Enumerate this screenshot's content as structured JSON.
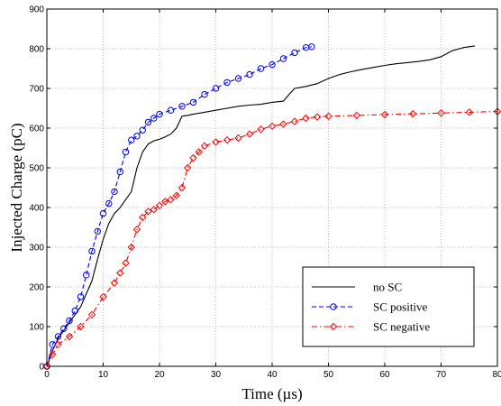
{
  "chart_data": {
    "type": "line",
    "title": "",
    "xlabel": "Time (µs)",
    "ylabel": "Injected Charge (pC)",
    "xlim": [
      0,
      80
    ],
    "ylim": [
      0,
      900
    ],
    "xticks": [
      0,
      10,
      20,
      30,
      40,
      50,
      60,
      70,
      80
    ],
    "yticks": [
      0,
      100,
      200,
      300,
      400,
      500,
      600,
      700,
      800,
      900
    ],
    "xtick_labels": [
      "0",
      "10",
      "20",
      "30",
      "40",
      "50",
      "60",
      "70",
      "80"
    ],
    "ytick_labels": [
      "0",
      "100",
      "200",
      "300",
      "400",
      "500",
      "600",
      "700",
      "800",
      "900"
    ],
    "grid": true,
    "legend_position": "bottom-right",
    "series": [
      {
        "name": "no SC",
        "color": "#000000",
        "line_style": "solid",
        "marker": "none",
        "x": [
          0,
          1,
          2,
          4,
          6,
          8,
          9,
          10,
          11,
          12,
          13,
          14,
          15,
          16,
          17,
          18,
          19,
          20,
          21,
          22,
          23,
          24,
          25,
          26,
          28,
          30,
          32,
          34,
          36,
          38,
          40,
          42,
          43,
          44,
          46,
          48,
          50,
          52,
          54,
          56,
          58,
          60,
          62,
          64,
          66,
          68,
          70,
          72,
          74,
          76
        ],
        "y": [
          0,
          40,
          70,
          110,
          150,
          215,
          270,
          320,
          360,
          385,
          400,
          420,
          440,
          500,
          540,
          560,
          568,
          572,
          578,
          585,
          600,
          630,
          632,
          635,
          640,
          645,
          650,
          655,
          658,
          660,
          665,
          668,
          685,
          700,
          705,
          712,
          725,
          735,
          742,
          748,
          753,
          758,
          762,
          765,
          768,
          772,
          780,
          795,
          803,
          807
        ]
      },
      {
        "name": "SC positive",
        "color": "#0000ff",
        "line_style": "dashed",
        "marker": "circle",
        "x": [
          0,
          1,
          2,
          3,
          4,
          5,
          6,
          7,
          8,
          9,
          10,
          11,
          12,
          13,
          14,
          15,
          16,
          17,
          18,
          19,
          20,
          22,
          24,
          26,
          28,
          30,
          32,
          34,
          36,
          38,
          40,
          42,
          44,
          46,
          47
        ],
        "y": [
          0,
          55,
          75,
          95,
          115,
          140,
          175,
          230,
          290,
          340,
          385,
          410,
          440,
          490,
          540,
          570,
          580,
          595,
          615,
          625,
          635,
          645,
          655,
          665,
          685,
          700,
          715,
          725,
          735,
          750,
          760,
          775,
          790,
          803,
          805
        ]
      },
      {
        "name": "SC negative",
        "color": "#ff0000",
        "line_style": "dashdot",
        "marker": "diamond",
        "x": [
          0,
          1,
          2,
          4,
          6,
          8,
          10,
          12,
          13,
          14,
          15,
          16,
          17,
          18,
          19,
          20,
          21,
          22,
          23,
          24,
          25,
          26,
          27,
          28,
          30,
          32,
          34,
          36,
          38,
          40,
          42,
          44,
          46,
          48,
          50,
          55,
          60,
          65,
          70,
          75,
          80
        ],
        "y": [
          0,
          30,
          55,
          75,
          100,
          130,
          175,
          210,
          235,
          260,
          300,
          345,
          375,
          390,
          395,
          405,
          415,
          420,
          430,
          450,
          500,
          525,
          540,
          555,
          565,
          570,
          575,
          585,
          597,
          605,
          610,
          617,
          625,
          628,
          630,
          632,
          634,
          636,
          638,
          640,
          642
        ]
      }
    ]
  }
}
